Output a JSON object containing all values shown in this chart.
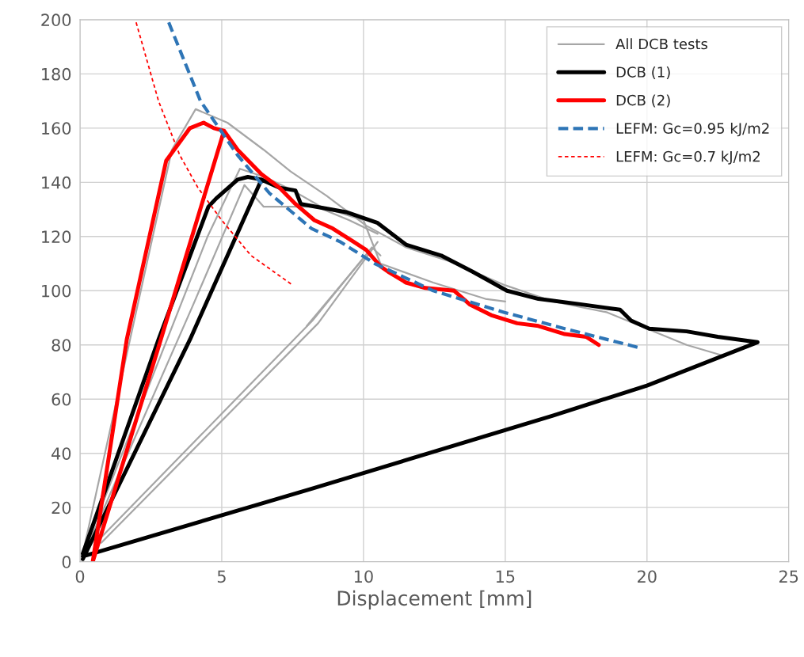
{
  "chart_data": {
    "type": "line",
    "xlabel": "Displacement [mm]",
    "xlim": [
      0,
      25
    ],
    "xticks": [
      0,
      5,
      10,
      15,
      20,
      25
    ],
    "ylim": [
      0,
      200
    ],
    "yticks": [
      0,
      20,
      40,
      60,
      80,
      100,
      120,
      140,
      160,
      180,
      200
    ],
    "grid": true,
    "legend": "top right",
    "marker": "none",
    "series": [
      {
        "name": "All DCB tests",
        "color": "#a6a6a6",
        "line_style": "solid",
        "x": [
          0.1,
          3.24,
          4.08,
          5.2,
          6.48,
          7.43,
          8.7,
          10.1,
          11.5,
          13,
          15,
          16.7,
          18.6,
          20,
          21.4,
          22.7
        ],
        "values": [
          3,
          152,
          167,
          162,
          152,
          144,
          135,
          124,
          116,
          111,
          102,
          96,
          92,
          86,
          80,
          76
        ]
      },
      {
        "color": "#a6a6a6",
        "line_style": "solid",
        "x": [
          0.1,
          4.5,
          5.64,
          6.5,
          7.5,
          8.5,
          10,
          10.6,
          12.46,
          14.3,
          15
        ],
        "values": [
          3,
          120,
          145,
          142,
          137,
          131,
          126,
          110,
          103,
          97,
          96
        ]
      },
      {
        "color": "#a6a6a6",
        "line_style": "solid",
        "x": [
          0.1,
          4,
          5.8,
          6.48,
          7.5,
          8.35,
          9.5,
          10.5
        ],
        "values": [
          2,
          95,
          139,
          131,
          131,
          131,
          126,
          121
        ]
      },
      {
        "color": "#a6a6a6",
        "line_style": "solid",
        "x": [
          0.75,
          8.2,
          10.3,
          10.6
        ],
        "values": [
          9,
          89,
          116,
          113
        ]
      },
      {
        "color": "#a6a6a6",
        "line_style": "solid",
        "x": [
          0.75,
          8.4,
          10.5
        ],
        "values": [
          7,
          88,
          118
        ]
      },
      {
        "color": "#a6a6a6",
        "line_style": "solid",
        "x": [
          8.0,
          10.0
        ],
        "values": [
          87,
          112
        ]
      },
      {
        "name": "DCB (1)",
        "color": "#000000",
        "line_style": "solid",
        "x": [
          0.1,
          2.77,
          4.53,
          4.8,
          5.56,
          5.92,
          6.4,
          3.88,
          0.1,
          3.88,
          6.4,
          7.04,
          7.6,
          7.79,
          9.39,
          10.5,
          11.5,
          12.74,
          13.85,
          15.06,
          16.17,
          17.65,
          19.05,
          19.44,
          20.08,
          21.4,
          22.5,
          23.9,
          20,
          16.7,
          8.2,
          0.1
        ],
        "values": [
          3,
          82,
          131,
          134,
          141,
          142,
          141,
          82,
          1,
          82,
          141,
          138,
          137,
          132,
          129,
          125,
          117,
          113,
          107,
          100,
          97,
          95,
          93,
          89,
          86,
          85,
          83,
          81,
          65,
          54,
          27,
          2
        ]
      },
      {
        "name": "DCB (2)",
        "color": "#ff0000",
        "line_style": "solid",
        "x": [
          0.45,
          1.65,
          3.04,
          3.32,
          3.88,
          4.36,
          4.72,
          5.08,
          2.85,
          0.45,
          2.85,
          5.08,
          5.56,
          6.4,
          7.04,
          7.6,
          8.27,
          8.91,
          9.66,
          10.1,
          10.6,
          10.87,
          11.5,
          12.18,
          13.2,
          13.74,
          14.5,
          15.42,
          16.17,
          17.1,
          17.85,
          18.3
        ],
        "values": [
          0,
          82,
          148,
          152,
          160,
          162,
          160,
          159,
          82,
          0,
          82,
          159,
          152,
          143,
          138,
          132,
          126,
          123,
          118,
          115,
          109,
          107,
          103,
          101,
          100,
          95,
          91,
          88,
          87,
          84,
          83,
          80
        ]
      },
      {
        "name": "LEFM: Gc=0.95 kJ/m2",
        "color": "#2e75b6",
        "line_style": "dashed",
        "x": [
          3.13,
          4.25,
          5.56,
          6.68,
          8.16,
          9.19,
          10.4,
          12.46,
          14.97,
          17.1,
          19.72
        ],
        "values": [
          199,
          170,
          150,
          136,
          123,
          118,
          110,
          100,
          92,
          86,
          79
        ]
      },
      {
        "name": "LEFM: Gc=0.7 kJ/m2",
        "color": "#ff0000",
        "line_style": "dotted",
        "x": [
          1.98,
          2.77,
          3.52,
          4.16,
          5.0,
          6.03,
          7.51
        ],
        "values": [
          199,
          170,
          150,
          138,
          126,
          113,
          102
        ]
      }
    ]
  }
}
